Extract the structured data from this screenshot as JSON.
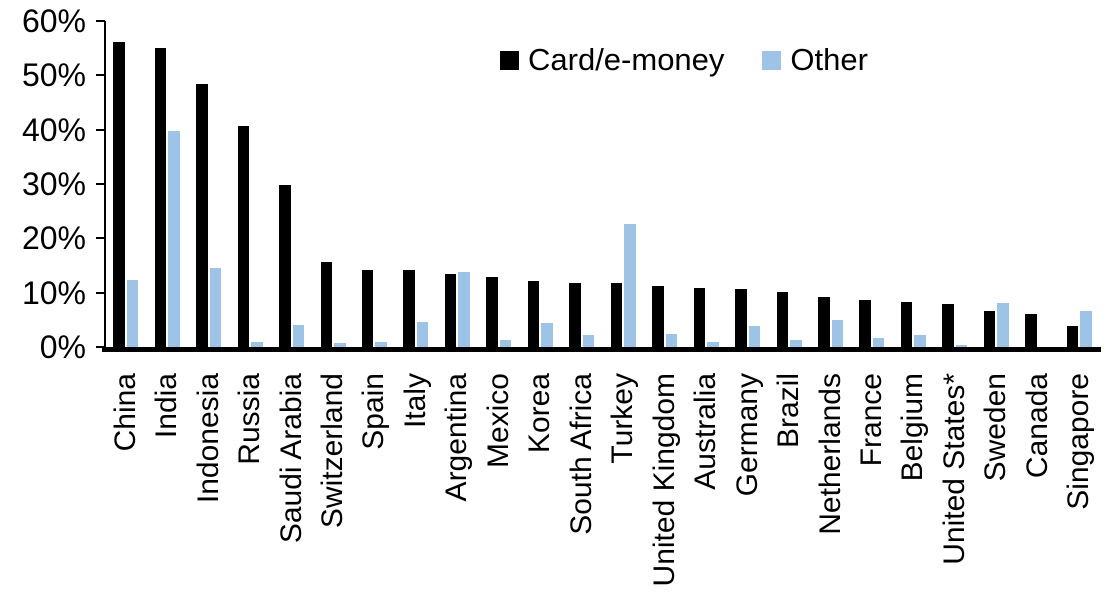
{
  "chart_data": {
    "type": "bar",
    "title": "",
    "xlabel": "",
    "ylabel": "",
    "ylim": [
      0,
      60
    ],
    "grid": false,
    "legend_position": "top-center",
    "axis_color": "#000000",
    "categories": [
      "China",
      "India",
      "Indonesia",
      "Russia",
      "Saudi Arabia",
      "Switzerland",
      "Spain",
      "Italy",
      "Argentina",
      "Mexico",
      "Korea",
      "South Africa",
      "Turkey",
      "United Kingdom",
      "Australia",
      "Germany",
      "Brazil",
      "Netherlands",
      "France",
      "Belgium",
      "United States*",
      "Sweden",
      "Canada",
      "Singapore"
    ],
    "series": [
      {
        "name": "Card/e-money",
        "color": "#000000",
        "values": [
          56.2,
          55.0,
          48.4,
          40.6,
          29.9,
          15.6,
          14.2,
          14.1,
          13.4,
          12.9,
          12.2,
          11.8,
          11.7,
          11.2,
          10.9,
          10.7,
          10.1,
          9.2,
          8.6,
          8.2,
          7.9,
          6.6,
          6.0,
          3.9
        ]
      },
      {
        "name": "Other",
        "color": "#9dc3e6",
        "values": [
          12.3,
          39.8,
          14.6,
          1.0,
          4.0,
          0.8,
          1.0,
          4.6,
          13.8,
          1.2,
          4.5,
          2.3,
          22.7,
          2.4,
          1.0,
          3.9,
          1.2,
          4.9,
          1.7,
          2.2,
          0.3,
          8.1,
          0.0,
          6.7
        ]
      }
    ],
    "y_ticks": [
      {
        "value": 0,
        "label": "0%"
      },
      {
        "value": 10,
        "label": "10%"
      },
      {
        "value": 20,
        "label": "20%"
      },
      {
        "value": 30,
        "label": "30%"
      },
      {
        "value": 40,
        "label": "40%"
      },
      {
        "value": 50,
        "label": "50%"
      },
      {
        "value": 60,
        "label": "60%"
      }
    ]
  }
}
